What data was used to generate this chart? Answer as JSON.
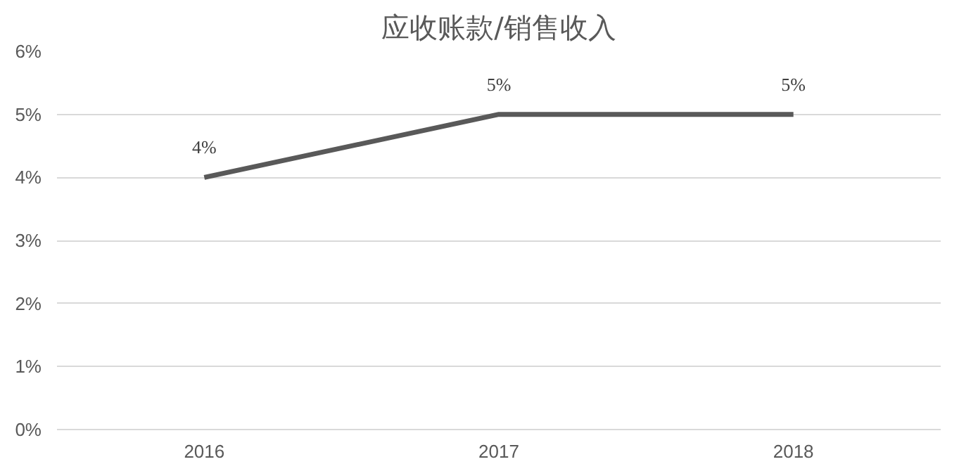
{
  "chart_data": {
    "type": "line",
    "title": "应收账款/销售收入",
    "categories": [
      "2016",
      "2017",
      "2018"
    ],
    "series": [
      {
        "color": "#595959",
        "values": [
          4,
          5,
          5
        ],
        "value_labels": [
          "4%",
          "5%",
          "5%"
        ]
      }
    ],
    "ylim": [
      0,
      6
    ],
    "yticks": [
      {
        "value": 0,
        "label": "0%"
      },
      {
        "value": 1,
        "label": "1%"
      },
      {
        "value": 2,
        "label": "2%"
      },
      {
        "value": 3,
        "label": "3%"
      },
      {
        "value": 4,
        "label": "4%"
      },
      {
        "value": 5,
        "label": "5%"
      },
      {
        "value": 6,
        "label": "6%"
      }
    ],
    "grid": "y",
    "marker": "none",
    "line_style": "solid"
  }
}
